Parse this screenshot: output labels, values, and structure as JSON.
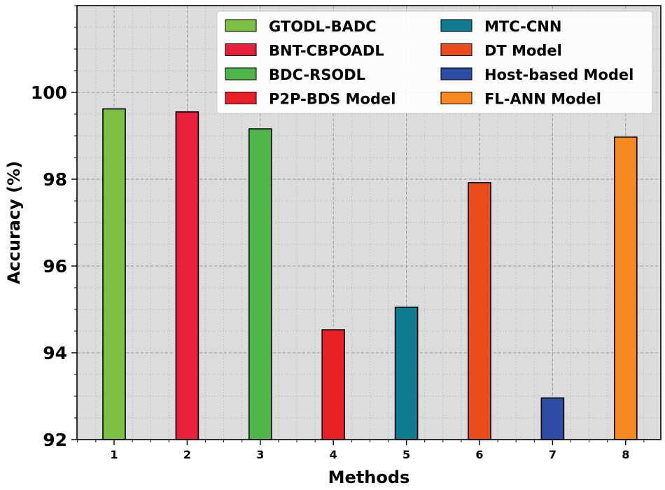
{
  "chart_data": {
    "type": "bar",
    "title": "",
    "xlabel": "Methods",
    "ylabel": "Accuracy (%)",
    "ylim": [
      92,
      102
    ],
    "yticks": [
      92,
      94,
      96,
      98,
      100
    ],
    "grid": true,
    "legend_location": "top-right",
    "categories": [
      "1",
      "2",
      "3",
      "4",
      "5",
      "6",
      "7",
      "8"
    ],
    "series": [
      {
        "name": "GTODL-BADC",
        "category": "1",
        "value": 99.62,
        "color": "#7ac143"
      },
      {
        "name": "BNT-CBPOADL",
        "category": "2",
        "value": 99.55,
        "color": "#e8203a"
      },
      {
        "name": "BDC-RSODL",
        "category": "3",
        "value": 99.16,
        "color": "#4db848"
      },
      {
        "name": "P2P-BDS Model",
        "category": "4",
        "value": 94.53,
        "color": "#ea2027"
      },
      {
        "name": "MTC-CNN",
        "category": "5",
        "value": 95.05,
        "color": "#0e7c8f"
      },
      {
        "name": "DT Model",
        "category": "6",
        "value": 97.92,
        "color": "#ea4c1e"
      },
      {
        "name": "Host-based Model",
        "category": "7",
        "value": 92.96,
        "color": "#2d4ea3"
      },
      {
        "name": "FL-ANN Model",
        "category": "8",
        "value": 98.97,
        "color": "#f7891f"
      }
    ]
  }
}
